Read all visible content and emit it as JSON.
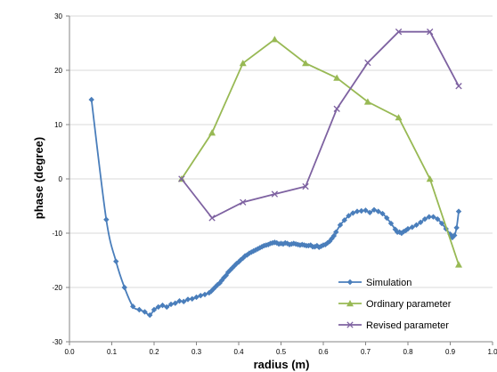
{
  "chart_data": {
    "type": "line",
    "title": "",
    "xlabel": "radius (m)",
    "ylabel": "phase (degree)",
    "xlim": [
      0.0,
      1.0
    ],
    "ylim": [
      -30,
      30
    ],
    "x_ticks": [
      "0.0",
      "0.1",
      "0.2",
      "0.3",
      "0.4",
      "0.5",
      "0.6",
      "0.7",
      "0.8",
      "0.9",
      "1.0"
    ],
    "y_ticks": [
      "30",
      "20",
      "10",
      "0",
      "-10",
      "-20",
      "-30"
    ],
    "grid": "horizontal",
    "legend_position": "bottom-right",
    "series": [
      {
        "name": "Simulation",
        "color": "#4a7ebb",
        "marker": "diamond",
        "x": [
          0.052,
          0.087,
          0.11,
          0.13,
          0.15,
          0.165,
          0.178,
          0.19,
          0.2,
          0.21,
          0.22,
          0.23,
          0.24,
          0.25,
          0.26,
          0.27,
          0.28,
          0.29,
          0.3,
          0.31,
          0.32,
          0.33,
          0.335,
          0.34,
          0.345,
          0.35,
          0.355,
          0.36,
          0.365,
          0.37,
          0.375,
          0.38,
          0.385,
          0.39,
          0.395,
          0.4,
          0.405,
          0.41,
          0.415,
          0.42,
          0.425,
          0.43,
          0.435,
          0.44,
          0.445,
          0.45,
          0.455,
          0.46,
          0.465,
          0.47,
          0.475,
          0.48,
          0.485,
          0.49,
          0.495,
          0.5,
          0.505,
          0.51,
          0.515,
          0.52,
          0.525,
          0.53,
          0.535,
          0.54,
          0.545,
          0.55,
          0.555,
          0.56,
          0.565,
          0.57,
          0.575,
          0.58,
          0.585,
          0.59,
          0.595,
          0.6,
          0.605,
          0.61,
          0.615,
          0.62,
          0.625,
          0.63,
          0.64,
          0.65,
          0.66,
          0.67,
          0.68,
          0.69,
          0.7,
          0.71,
          0.72,
          0.73,
          0.74,
          0.75,
          0.76,
          0.77,
          0.775,
          0.78,
          0.785,
          0.79,
          0.795,
          0.8,
          0.81,
          0.82,
          0.83,
          0.84,
          0.85,
          0.86,
          0.87,
          0.88,
          0.89,
          0.9,
          0.905,
          0.91,
          0.915,
          0.92
        ],
        "values": [
          14.6,
          -7.5,
          -15.2,
          -20,
          -23.5,
          -24.1,
          -24.5,
          -25.1,
          -24.1,
          -23.6,
          -23.3,
          -23.6,
          -23.1,
          -22.9,
          -22.5,
          -22.6,
          -22.2,
          -22.1,
          -21.8,
          -21.5,
          -21.3,
          -21,
          -20.7,
          -20.3,
          -19.9,
          -19.5,
          -19.2,
          -18.7,
          -18.2,
          -17.8,
          -17.2,
          -16.8,
          -16.4,
          -16,
          -15.6,
          -15.3,
          -14.9,
          -14.6,
          -14.2,
          -14,
          -13.7,
          -13.5,
          -13.3,
          -13.1,
          -12.9,
          -12.7,
          -12.5,
          -12.3,
          -12.2,
          -12.1,
          -11.9,
          -11.8,
          -11.7,
          -11.8,
          -12,
          -11.9,
          -12,
          -11.8,
          -11.9,
          -12.1,
          -12,
          -11.9,
          -12,
          -12.1,
          -12.2,
          -12.1,
          -12.2,
          -12.3,
          -12.3,
          -12.2,
          -12.5,
          -12.5,
          -12.3,
          -12.6,
          -12.4,
          -12.2,
          -12.1,
          -11.8,
          -11.5,
          -11,
          -10.5,
          -9.8,
          -8.5,
          -7.6,
          -6.8,
          -6.3,
          -6,
          -5.9,
          -5.8,
          -6.2,
          -5.7,
          -6,
          -6.4,
          -7.2,
          -8.2,
          -9.3,
          -9.8,
          -9.8,
          -10,
          -9.7,
          -9.5,
          -9.2,
          -8.9,
          -8.5,
          -8,
          -7.4,
          -7,
          -7,
          -7.4,
          -8.2,
          -9.2,
          -10.2,
          -10.8,
          -10.4,
          -9,
          -6
        ]
      },
      {
        "name": "Ordinary parameter",
        "color": "#98b954",
        "marker": "triangle",
        "x": [
          0.265,
          0.337,
          0.41,
          0.485,
          0.558,
          0.632,
          0.705,
          0.778,
          0.852,
          0.92
        ],
        "values": [
          0,
          8.5,
          21.3,
          25.7,
          21.3,
          18.6,
          14.2,
          11.3,
          0,
          -15.8
        ]
      },
      {
        "name": "Revised parameter",
        "color": "#7e62a1",
        "marker": "x",
        "x": [
          0.265,
          0.337,
          0.41,
          0.485,
          0.558,
          0.632,
          0.705,
          0.778,
          0.852,
          0.92
        ],
        "values": [
          0,
          -7.2,
          -4.3,
          -2.8,
          -1.4,
          12.9,
          21.4,
          27.1,
          27.1,
          17.1
        ]
      }
    ]
  }
}
